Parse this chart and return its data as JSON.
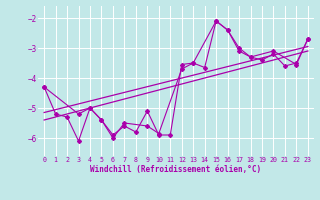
{
  "title": "",
  "xlabel": "Windchill (Refroidissement éolien,°C)",
  "ylabel": "",
  "bg_color": "#c2e8e8",
  "grid_color": "#ffffff",
  "line_color": "#aa00aa",
  "tick_color": "#aa00aa",
  "xlim": [
    -0.5,
    23.5
  ],
  "ylim": [
    -6.6,
    -1.6
  ],
  "yticks": [
    -6,
    -5,
    -4,
    -3,
    -2
  ],
  "xticks": [
    0,
    1,
    2,
    3,
    4,
    5,
    6,
    7,
    8,
    9,
    10,
    11,
    12,
    13,
    14,
    15,
    16,
    17,
    18,
    19,
    20,
    21,
    22,
    23
  ],
  "series1": [
    [
      0,
      -4.3
    ],
    [
      1,
      -5.2
    ],
    [
      2,
      -5.3
    ],
    [
      3,
      -6.1
    ],
    [
      4,
      -5.0
    ],
    [
      5,
      -5.4
    ],
    [
      6,
      -5.9
    ],
    [
      7,
      -5.6
    ],
    [
      8,
      -5.8
    ],
    [
      9,
      -5.1
    ],
    [
      10,
      -5.9
    ],
    [
      11,
      -5.9
    ],
    [
      12,
      -3.55
    ],
    [
      13,
      -3.5
    ],
    [
      14,
      -3.65
    ],
    [
      15,
      -2.1
    ],
    [
      16,
      -2.4
    ],
    [
      17,
      -3.1
    ],
    [
      18,
      -3.3
    ],
    [
      19,
      -3.4
    ],
    [
      20,
      -3.2
    ],
    [
      21,
      -3.6
    ],
    [
      22,
      -3.5
    ],
    [
      23,
      -2.7
    ]
  ],
  "series2": [
    [
      0,
      -4.3
    ],
    [
      3,
      -5.2
    ],
    [
      4,
      -5.0
    ],
    [
      5,
      -5.4
    ],
    [
      6,
      -6.0
    ],
    [
      7,
      -5.5
    ],
    [
      9,
      -5.6
    ],
    [
      10,
      -5.85
    ],
    [
      12,
      -3.7
    ],
    [
      13,
      -3.5
    ],
    [
      15,
      -2.1
    ],
    [
      16,
      -2.4
    ],
    [
      17,
      -3.0
    ],
    [
      18,
      -3.3
    ],
    [
      20,
      -3.1
    ],
    [
      22,
      -3.55
    ],
    [
      23,
      -2.7
    ]
  ],
  "regression_line1": [
    [
      0,
      -5.4
    ],
    [
      23,
      -3.1
    ]
  ],
  "regression_line2": [
    [
      0,
      -5.15
    ],
    [
      23,
      -2.95
    ]
  ]
}
